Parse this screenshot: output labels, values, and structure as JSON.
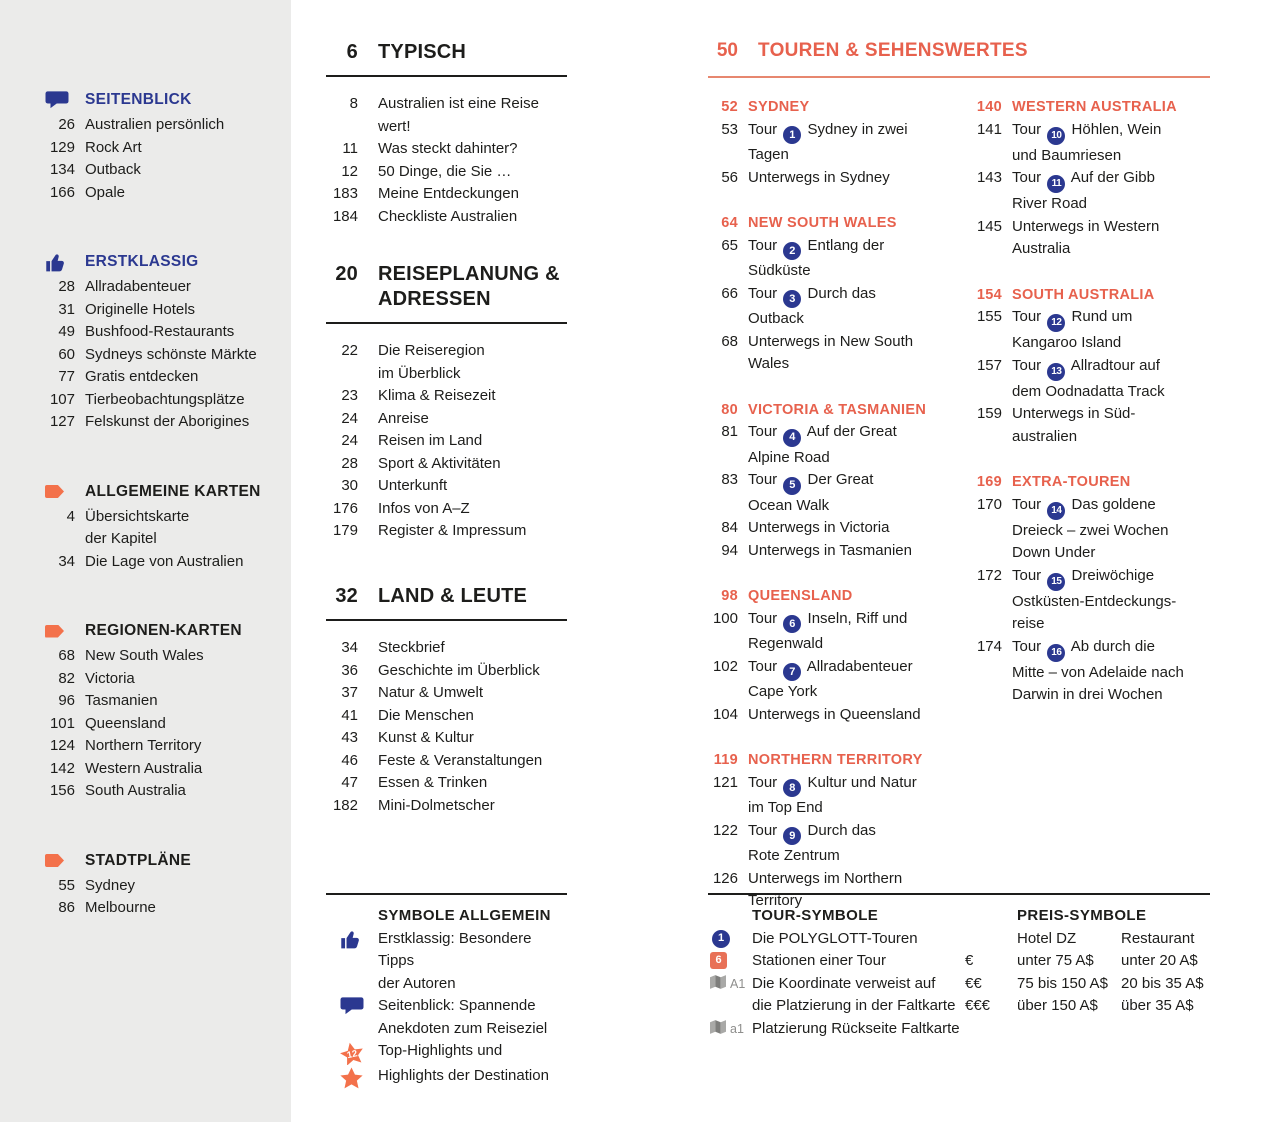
{
  "colors": {
    "accent_orange": "#E7614D",
    "icon_orange": "#F3714B",
    "accent_blue": "#2B3890",
    "text": "#1D1D1B",
    "muted_gray": "#8E8E8C",
    "sidebar_bg": "#EBEBEA"
  },
  "sidebar": {
    "sections": [
      {
        "icon": "speech-bubble-icon",
        "title": "SEITENBLICK",
        "accent": "blue",
        "items": [
          {
            "page": "26",
            "label": "Australien persönlich"
          },
          {
            "page": "129",
            "label": "Rock Art"
          },
          {
            "page": "134",
            "label": "Outback"
          },
          {
            "page": "166",
            "label": "Opale"
          }
        ]
      },
      {
        "icon": "thumbs-up-icon",
        "title": "ERSTKLASSIG",
        "accent": "blue",
        "items": [
          {
            "page": "28",
            "label": "Allradabenteuer"
          },
          {
            "page": "31",
            "label": "Originelle Hotels"
          },
          {
            "page": "49",
            "label": "Bushfood-Restaurants"
          },
          {
            "page": "60",
            "label": "Sydneys schönste Märkte"
          },
          {
            "page": "77",
            "label": "Gratis entdecken"
          },
          {
            "page": "107",
            "label": "Tierbeobachtungsplätze"
          },
          {
            "page": "127",
            "label": "Felskunst der Aborigines"
          }
        ]
      },
      {
        "icon": "arrow-icon",
        "title": "ALLGEMEINE KARTEN",
        "accent": "dark",
        "items": [
          {
            "page": "4",
            "label": "Übersichtskarte\nder Kapitel"
          },
          {
            "page": "34",
            "label": "Die Lage von Australien"
          }
        ]
      },
      {
        "icon": "arrow-icon",
        "title": "REGIONEN-KARTEN",
        "accent": "dark",
        "items": [
          {
            "page": "68",
            "label": "New South Wales"
          },
          {
            "page": "82",
            "label": "Victoria"
          },
          {
            "page": "96",
            "label": "Tasmanien"
          },
          {
            "page": "101",
            "label": "Queensland"
          },
          {
            "page": "124",
            "label": "Northern Territory"
          },
          {
            "page": "142",
            "label": "Western Australia"
          },
          {
            "page": "156",
            "label": "South Australia"
          }
        ]
      },
      {
        "icon": "arrow-icon",
        "title": "STADTPLÄNE",
        "accent": "dark",
        "items": [
          {
            "page": "55",
            "label": "Sydney"
          },
          {
            "page": "86",
            "label": "Melbourne"
          }
        ]
      }
    ]
  },
  "main_sections": [
    {
      "page": "6",
      "title": "TYPISCH",
      "items": [
        {
          "page": "8",
          "label": "Australien ist eine Reise\nwert!"
        },
        {
          "page": "11",
          "label": "Was steckt dahinter?"
        },
        {
          "page": "12",
          "label": "50 Dinge, die Sie …"
        },
        {
          "page": "183",
          "label": "Meine Entdeckungen"
        },
        {
          "page": "184",
          "label": "Checkliste Australien"
        }
      ]
    },
    {
      "page": "20",
      "title": "REISEPLANUNG &\nADRESSEN",
      "items": [
        {
          "page": "22",
          "label": "Die Reiseregion\nim Überblick"
        },
        {
          "page": "23",
          "label": "Klima & Reisezeit"
        },
        {
          "page": "24",
          "label": "Anreise"
        },
        {
          "page": "24",
          "label": "Reisen im Land"
        },
        {
          "page": "28",
          "label": "Sport & Aktivitäten"
        },
        {
          "page": "30",
          "label": "Unterkunft"
        },
        {
          "page": "176",
          "label": "Infos von A–Z"
        },
        {
          "page": "179",
          "label": "Register & Impressum"
        }
      ]
    },
    {
      "page": "32",
      "title": "LAND & LEUTE",
      "items": [
        {
          "page": "34",
          "label": "Steckbrief"
        },
        {
          "page": "36",
          "label": "Geschichte im Überblick"
        },
        {
          "page": "37",
          "label": "Natur & Umwelt"
        },
        {
          "page": "41",
          "label": "Die Menschen"
        },
        {
          "page": "43",
          "label": "Kunst & Kultur"
        },
        {
          "page": "46",
          "label": "Feste & Veranstaltungen"
        },
        {
          "page": "47",
          "label": "Essen & Trinken"
        },
        {
          "page": "182",
          "label": "Mini-Dolmetscher"
        }
      ]
    }
  ],
  "symbole_allgemein": {
    "title": "SYMBOLE ALLGEMEIN",
    "items": [
      {
        "icon": "thumbs-up-icon",
        "text": "Erstklassig: Besondere Tipps\nder Autoren"
      },
      {
        "icon": "speech-bubble-icon",
        "text": "Seitenblick: Spannende\nAnekdoten zum Reiseziel"
      },
      {
        "icon": "star-badge-icon",
        "icon_label": "12",
        "text": "Top-Highlights und"
      },
      {
        "icon": "star-icon",
        "text": "Highlights der Destination"
      }
    ]
  },
  "tours": {
    "page": "50",
    "title": "TOUREN & SEHENSWERTES",
    "tour_label": "Tour",
    "columns": [
      [
        {
          "page": "52",
          "title": "SYDNEY",
          "entries": [
            {
              "page": "53",
              "badge": "1",
              "text": "Sydney in zwei\nTagen"
            },
            {
              "page": "56",
              "text": "Unterwegs in Sydney"
            }
          ]
        },
        {
          "page": "64",
          "title": "NEW SOUTH WALES",
          "entries": [
            {
              "page": "65",
              "badge": "2",
              "text": "Entlang der\nSüdküste"
            },
            {
              "page": "66",
              "badge": "3",
              "text": "Durch das\nOutback"
            },
            {
              "page": "68",
              "text": "Unterwegs in New South\nWales"
            }
          ]
        },
        {
          "page": "80",
          "title": "VICTORIA & TASMANIEN",
          "entries": [
            {
              "page": "81",
              "badge": "4",
              "text": "Auf der Great\nAlpine Road"
            },
            {
              "page": "83",
              "badge": "5",
              "text": "Der Great\nOcean Walk"
            },
            {
              "page": "84",
              "text": "Unterwegs in Victoria"
            },
            {
              "page": "94",
              "text": "Unterwegs in Tasmanien"
            }
          ]
        },
        {
          "page": "98",
          "title": "QUEENSLAND",
          "entries": [
            {
              "page": "100",
              "badge": "6",
              "text": "Inseln, Riff und\nRegenwald"
            },
            {
              "page": "102",
              "badge": "7",
              "text": "Allradabenteuer\nCape York"
            },
            {
              "page": "104",
              "text": "Unterwegs in Queensland"
            }
          ]
        },
        {
          "page": "119",
          "title": "NORTHERN TERRITORY",
          "entries": [
            {
              "page": "121",
              "badge": "8",
              "text": "Kultur und Natur\nim Top End"
            },
            {
              "page": "122",
              "badge": "9",
              "text": "Durch das\nRote Zentrum"
            },
            {
              "page": "126",
              "text": "Unterwegs im Northern\nTerritory"
            }
          ]
        }
      ],
      [
        {
          "page": "140",
          "title": "WESTERN AUSTRALIA",
          "entries": [
            {
              "page": "141",
              "badge": "10",
              "text": "Höhlen, Wein\nund Baumriesen"
            },
            {
              "page": "143",
              "badge": "11",
              "text": "Auf der Gibb\nRiver Road"
            },
            {
              "page": "145",
              "text": "Unterwegs in Western\nAustralia"
            }
          ]
        },
        {
          "page": "154",
          "title": "SOUTH AUSTRALIA",
          "entries": [
            {
              "page": "155",
              "badge": "12",
              "text": "Rund um\nKangaroo Island"
            },
            {
              "page": "157",
              "badge": "13",
              "text": "Allradtour auf\ndem Oodnadatta Track"
            },
            {
              "page": "159",
              "text": "Unterwegs in Süd-\naustralien"
            }
          ]
        },
        {
          "page": "169",
          "title": "EXTRA-TOUREN",
          "entries": [
            {
              "page": "170",
              "badge": "14",
              "text": "Das goldene\nDreieck – zwei Wochen\nDown Under"
            },
            {
              "page": "172",
              "badge": "15",
              "text": "Dreiwöchige\nOstküsten-Entdeckungs-\nreise"
            },
            {
              "page": "174",
              "badge": "16",
              "text": "Ab durch die\nMitte – von Adelaide nach\nDarwin in drei Wochen"
            }
          ]
        }
      ]
    ]
  },
  "tour_symbole": {
    "title": "TOUR-SYMBOLE",
    "items": [
      {
        "icon": "tour-badge-icon",
        "icon_label": "1",
        "text": "Die POLYGLOTT-Touren"
      },
      {
        "icon": "station-badge-icon",
        "icon_label": "6",
        "text": "Stationen einer Tour"
      },
      {
        "icon": "map-icon",
        "icon_label": "A1",
        "text": "Die Koordinate verweist auf\ndie Platzierung in der Faltkarte"
      },
      {
        "icon": "map-icon",
        "icon_label": "a1",
        "text": "Platzierung Rückseite Faltkarte"
      }
    ]
  },
  "preis_symbole": {
    "title": "PREIS-SYMBOLE",
    "col_headers": [
      "Hotel DZ",
      "Restaurant"
    ],
    "rows": [
      {
        "symbol": "€",
        "hotel": "unter 75 A$",
        "restaurant": "unter 20 A$"
      },
      {
        "symbol": "€€",
        "hotel": "75 bis 150 A$",
        "restaurant": "20 bis 35 A$"
      },
      {
        "symbol": "€€€",
        "hotel": "über 150 A$",
        "restaurant": "über 35 A$"
      }
    ]
  }
}
